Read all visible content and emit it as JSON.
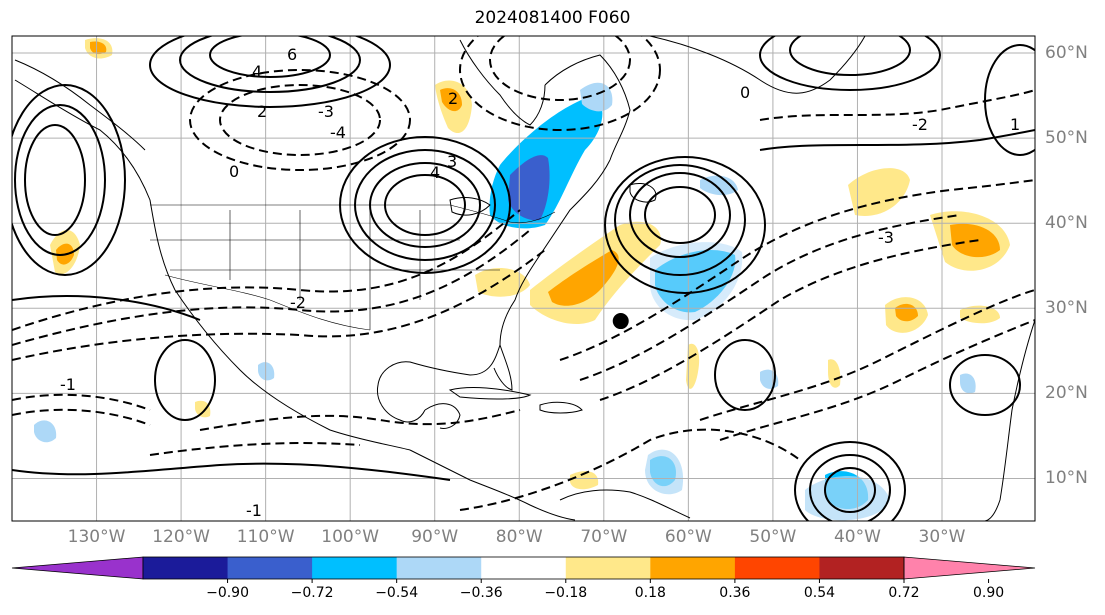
{
  "title": "2024081400 F060",
  "map": {
    "projection": "PlateCarree",
    "extent": {
      "lon_min": -140,
      "lon_max": -19,
      "lat_min": 5,
      "lat_max": 62
    },
    "marker": {
      "lon": -68,
      "lat": 28.5,
      "color": "#000000"
    },
    "lon_labels": [
      {
        "lon": -130,
        "text": "130°W"
      },
      {
        "lon": -120,
        "text": "120°W"
      },
      {
        "lon": -110,
        "text": "110°W"
      },
      {
        "lon": -100,
        "text": "100°W"
      },
      {
        "lon": -90,
        "text": "90°W"
      },
      {
        "lon": -80,
        "text": "80°W"
      },
      {
        "lon": -70,
        "text": "70°W"
      },
      {
        "lon": -60,
        "text": "60°W"
      },
      {
        "lon": -50,
        "text": "50°W"
      },
      {
        "lon": -40,
        "text": "40°W"
      },
      {
        "lon": -30,
        "text": "30°W"
      }
    ],
    "lat_labels": [
      {
        "lat": 60,
        "text": "60°N"
      },
      {
        "lat": 50,
        "text": "50°N"
      },
      {
        "lat": 40,
        "text": "40°N"
      },
      {
        "lat": 30,
        "text": "30°N"
      },
      {
        "lat": 20,
        "text": "20°N"
      },
      {
        "lat": 10,
        "text": "10°N"
      }
    ],
    "contour_labels": [
      "6",
      "4",
      "2",
      "0",
      "-1",
      "-2",
      "-3",
      "4",
      "3",
      "2",
      "1",
      "0",
      "-1",
      "-2",
      "-3",
      "-4"
    ]
  },
  "colorbar": {
    "colors": [
      "#9932cc",
      "#1b1b9a",
      "#3a5fcd",
      "#00bfff",
      "#add8f7",
      "#ffffff",
      "#ffe88a",
      "#ffa500",
      "#ff4500",
      "#b22222",
      "#ff82ab"
    ],
    "ticks": [
      "−0.90",
      "−0.72",
      "−0.54",
      "−0.36",
      "−0.18",
      "0.18",
      "0.36",
      "0.54",
      "0.72",
      "0.90"
    ]
  }
}
